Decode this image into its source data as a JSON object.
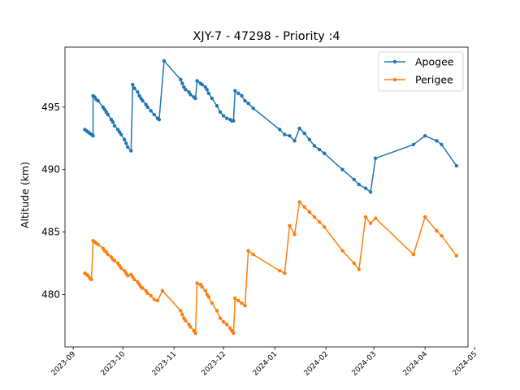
{
  "chart_data": {
    "type": "line",
    "title": "XJY-7 - 47298 - Priority :4",
    "xlabel": "",
    "ylabel": "Altitude (km)",
    "xlim": [
      "2023-08-27",
      "2024-04-27"
    ],
    "ylim": [
      475.8,
      499.8
    ],
    "grid": false,
    "legend_position": "top-right",
    "x_ticks": [
      "2023-09",
      "2023-10",
      "2023-11",
      "2023-12",
      "2024-01",
      "2024-02",
      "2024-03",
      "2024-04",
      "2024-05"
    ],
    "y_ticks": [
      480,
      485,
      490,
      495
    ],
    "series": [
      {
        "name": "Apogee",
        "color": "#1f77b4",
        "points": [
          [
            "2023-09-08",
            493.2
          ],
          [
            "2023-09-09",
            493.1
          ],
          [
            "2023-09-10",
            493.0
          ],
          [
            "2023-09-11",
            492.9
          ],
          [
            "2023-09-12",
            492.8
          ],
          [
            "2023-09-13",
            492.7
          ],
          [
            "2023-09-13",
            495.9
          ],
          [
            "2023-09-14",
            495.8
          ],
          [
            "2023-09-15",
            495.6
          ],
          [
            "2023-09-16",
            495.5
          ],
          [
            "2023-09-19",
            495.0
          ],
          [
            "2023-09-20",
            494.8
          ],
          [
            "2023-09-21",
            494.6
          ],
          [
            "2023-09-22",
            494.4
          ],
          [
            "2023-09-24",
            494.0
          ],
          [
            "2023-09-25",
            493.8
          ],
          [
            "2023-09-26",
            493.5
          ],
          [
            "2023-09-28",
            493.2
          ],
          [
            "2023-09-29",
            493.0
          ],
          [
            "2023-09-30",
            492.8
          ],
          [
            "2023-10-02",
            492.4
          ],
          [
            "2023-10-03",
            492.1
          ],
          [
            "2023-10-04",
            491.8
          ],
          [
            "2023-10-06",
            491.5
          ],
          [
            "2023-10-07",
            496.8
          ],
          [
            "2023-10-08",
            496.5
          ],
          [
            "2023-10-10",
            496.2
          ],
          [
            "2023-10-11",
            495.9
          ],
          [
            "2023-10-12",
            495.7
          ],
          [
            "2023-10-13",
            495.5
          ],
          [
            "2023-10-15",
            495.2
          ],
          [
            "2023-10-16",
            495.0
          ],
          [
            "2023-10-18",
            494.7
          ],
          [
            "2023-10-20",
            494.4
          ],
          [
            "2023-10-22",
            494.1
          ],
          [
            "2023-10-23",
            494.0
          ],
          [
            "2023-10-26",
            498.7
          ],
          [
            "2023-11-05",
            497.2
          ],
          [
            "2023-11-06",
            496.9
          ],
          [
            "2023-11-07",
            496.6
          ],
          [
            "2023-11-08",
            496.4
          ],
          [
            "2023-11-10",
            496.2
          ],
          [
            "2023-11-11",
            496.0
          ],
          [
            "2023-11-13",
            495.8
          ],
          [
            "2023-11-14",
            495.7
          ],
          [
            "2023-11-15",
            497.1
          ],
          [
            "2023-11-17",
            496.9
          ],
          [
            "2023-11-18",
            496.8
          ],
          [
            "2023-11-20",
            496.6
          ],
          [
            "2023-11-21",
            496.4
          ],
          [
            "2023-11-22",
            496.1
          ],
          [
            "2023-11-24",
            495.7
          ],
          [
            "2023-11-27",
            495.1
          ],
          [
            "2023-11-29",
            494.6
          ],
          [
            "2023-12-01",
            494.3
          ],
          [
            "2023-12-03",
            494.1
          ],
          [
            "2023-12-05",
            494.0
          ],
          [
            "2023-12-06",
            493.9
          ],
          [
            "2023-12-07",
            493.9
          ],
          [
            "2023-12-08",
            496.3
          ],
          [
            "2023-12-10",
            496.1
          ],
          [
            "2023-12-12",
            495.9
          ],
          [
            "2023-12-14",
            495.5
          ],
          [
            "2023-12-16",
            495.3
          ],
          [
            "2023-12-19",
            494.9
          ],
          [
            "2024-01-04",
            493.2
          ],
          [
            "2024-01-07",
            492.8
          ],
          [
            "2024-01-10",
            492.7
          ],
          [
            "2024-01-13",
            492.3
          ],
          [
            "2024-01-16",
            493.3
          ],
          [
            "2024-01-19",
            492.9
          ],
          [
            "2024-01-22",
            492.4
          ],
          [
            "2024-01-25",
            491.9
          ],
          [
            "2024-01-28",
            491.6
          ],
          [
            "2024-01-31",
            491.3
          ],
          [
            "2024-02-11",
            490.0
          ],
          [
            "2024-02-18",
            489.2
          ],
          [
            "2024-02-21",
            488.8
          ],
          [
            "2024-02-25",
            488.5
          ],
          [
            "2024-02-28",
            488.2
          ],
          [
            "2024-03-02",
            490.9
          ],
          [
            "2024-03-25",
            492.0
          ],
          [
            "2024-04-01",
            492.7
          ],
          [
            "2024-04-08",
            492.3
          ],
          [
            "2024-04-11",
            492.0
          ],
          [
            "2024-04-20",
            490.3
          ]
        ]
      },
      {
        "name": "Perigee",
        "color": "#ff7f0e",
        "points": [
          [
            "2023-09-08",
            481.7
          ],
          [
            "2023-09-09",
            481.6
          ],
          [
            "2023-09-10",
            481.5
          ],
          [
            "2023-09-11",
            481.3
          ],
          [
            "2023-09-12",
            481.2
          ],
          [
            "2023-09-13",
            484.3
          ],
          [
            "2023-09-14",
            484.2
          ],
          [
            "2023-09-15",
            484.1
          ],
          [
            "2023-09-16",
            484.0
          ],
          [
            "2023-09-19",
            483.7
          ],
          [
            "2023-09-20",
            483.5
          ],
          [
            "2023-09-21",
            483.4
          ],
          [
            "2023-09-22",
            483.2
          ],
          [
            "2023-09-24",
            483.0
          ],
          [
            "2023-09-25",
            482.8
          ],
          [
            "2023-09-26",
            482.7
          ],
          [
            "2023-09-28",
            482.5
          ],
          [
            "2023-09-29",
            482.3
          ],
          [
            "2023-09-30",
            482.1
          ],
          [
            "2023-10-02",
            481.9
          ],
          [
            "2023-10-03",
            481.7
          ],
          [
            "2023-10-04",
            481.5
          ],
          [
            "2023-10-06",
            481.6
          ],
          [
            "2023-10-07",
            481.4
          ],
          [
            "2023-10-08",
            481.2
          ],
          [
            "2023-10-10",
            481.0
          ],
          [
            "2023-10-11",
            480.8
          ],
          [
            "2023-10-12",
            480.6
          ],
          [
            "2023-10-13",
            480.5
          ],
          [
            "2023-10-15",
            480.3
          ],
          [
            "2023-10-16",
            480.1
          ],
          [
            "2023-10-18",
            479.9
          ],
          [
            "2023-10-20",
            479.6
          ],
          [
            "2023-10-22",
            479.5
          ],
          [
            "2023-10-25",
            480.3
          ],
          [
            "2023-11-05",
            478.7
          ],
          [
            "2023-11-06",
            478.4
          ],
          [
            "2023-11-07",
            478.1
          ],
          [
            "2023-11-08",
            477.9
          ],
          [
            "2023-11-10",
            477.6
          ],
          [
            "2023-11-11",
            477.4
          ],
          [
            "2023-11-13",
            477.1
          ],
          [
            "2023-11-14",
            476.9
          ],
          [
            "2023-11-15",
            480.9
          ],
          [
            "2023-11-17",
            480.8
          ],
          [
            "2023-11-18",
            480.6
          ],
          [
            "2023-11-20",
            480.3
          ],
          [
            "2023-11-21",
            480.0
          ],
          [
            "2023-11-22",
            479.8
          ],
          [
            "2023-11-24",
            479.3
          ],
          [
            "2023-11-27",
            478.7
          ],
          [
            "2023-11-29",
            478.1
          ],
          [
            "2023-12-01",
            477.8
          ],
          [
            "2023-12-03",
            477.6
          ],
          [
            "2023-12-05",
            477.3
          ],
          [
            "2023-12-06",
            477.1
          ],
          [
            "2023-12-07",
            476.9
          ],
          [
            "2023-12-08",
            479.7
          ],
          [
            "2023-12-10",
            479.5
          ],
          [
            "2023-12-12",
            479.3
          ],
          [
            "2023-12-14",
            479.1
          ],
          [
            "2023-12-16",
            483.5
          ],
          [
            "2023-12-19",
            483.2
          ],
          [
            "2024-01-04",
            481.9
          ],
          [
            "2024-01-07",
            481.7
          ],
          [
            "2024-01-10",
            485.5
          ],
          [
            "2024-01-13",
            484.8
          ],
          [
            "2024-01-16",
            487.4
          ],
          [
            "2024-01-19",
            487.0
          ],
          [
            "2024-01-22",
            486.6
          ],
          [
            "2024-01-25",
            486.2
          ],
          [
            "2024-01-28",
            485.8
          ],
          [
            "2024-01-31",
            485.4
          ],
          [
            "2024-02-11",
            483.5
          ],
          [
            "2024-02-18",
            482.5
          ],
          [
            "2024-02-21",
            482.0
          ],
          [
            "2024-02-25",
            486.2
          ],
          [
            "2024-02-28",
            485.7
          ],
          [
            "2024-03-02",
            486.1
          ],
          [
            "2024-03-25",
            483.2
          ],
          [
            "2024-04-01",
            486.2
          ],
          [
            "2024-04-08",
            485.1
          ],
          [
            "2024-04-11",
            484.7
          ],
          [
            "2024-04-20",
            483.1
          ]
        ]
      }
    ]
  }
}
